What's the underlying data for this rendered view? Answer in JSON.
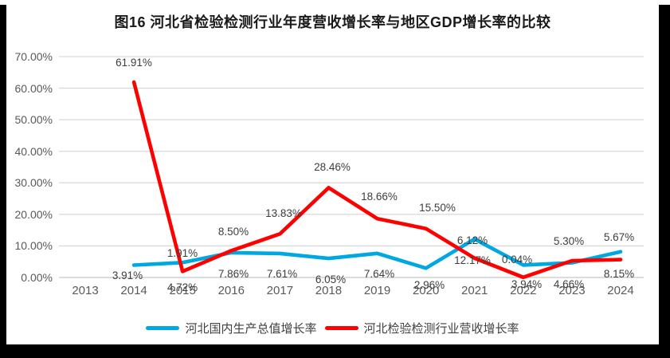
{
  "title": "图16 河北省检验检测行业年度营收增长率与地区GDP增长率的比较",
  "colors": {
    "page_bg": "#000000",
    "panel_bg": "#ffffff",
    "gridline": "#d9d9d9",
    "axis_line": "#c6c6c6",
    "axis_text": "#595959",
    "data_label_text": "#3d3d3d",
    "gdp_line": "#00a8e1",
    "revenue_line": "#fe0000"
  },
  "chart_data": {
    "type": "line",
    "title": "图16 河北省检验检测行业年度营收增长率与地区GDP增长率的比较",
    "categories": [
      "2013",
      "2014",
      "2015",
      "2016",
      "2017",
      "2018",
      "2019",
      "2020",
      "2021",
      "2022",
      "2023",
      "2024"
    ],
    "yticks": [
      "0.00%",
      "10.00%",
      "20.00%",
      "30.00%",
      "40.00%",
      "50.00%",
      "60.00%",
      "70.00%"
    ],
    "ylim": [
      0,
      70
    ],
    "grid": true,
    "legend_position": "bottom",
    "series": [
      {
        "name": "河北国内生产总值增长率",
        "color": "#00a8e1",
        "values": [
          null,
          3.91,
          4.72,
          7.86,
          7.61,
          6.05,
          7.64,
          2.96,
          12.17,
          3.94,
          4.66,
          8.15
        ],
        "labels": [
          "3.91%",
          "4.72%",
          "7.86%",
          "7.61%",
          "6.05%",
          "7.64%",
          "2.96%",
          "12.17%",
          "3.94%",
          "4.66%",
          "8.15%"
        ]
      },
      {
        "name": "河北检验检测行业营收增长率",
        "color": "#fe0000",
        "values": [
          null,
          61.91,
          1.91,
          8.5,
          13.83,
          28.46,
          18.66,
          15.5,
          6.12,
          0.04,
          5.3,
          5.67
        ],
        "labels": [
          "61.91%",
          "1.91%",
          "8.50%",
          "13.83%",
          "28.46%",
          "18.66%",
          "15.50%",
          "6.12%",
          "0.04%",
          "5.30%",
          "5.67%"
        ]
      }
    ]
  }
}
